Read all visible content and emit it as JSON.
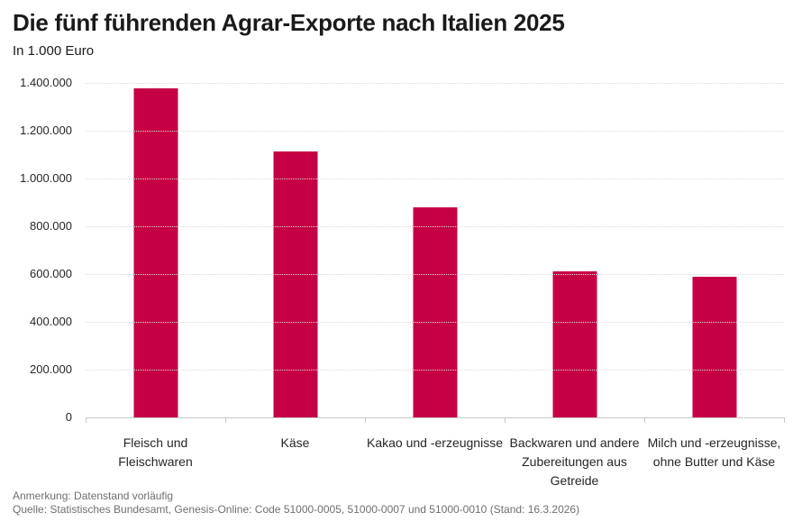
{
  "chart_data": {
    "type": "bar",
    "title": "Die fünf führenden Agrar-Exporte nach Italien 2025",
    "subtitle": "In 1.000 Euro",
    "categories": [
      "Fleisch und Fleischwaren",
      "Käse",
      "Kakao und -erzeugnisse",
      "Backwaren und andere Zubereitungen aus Getreide",
      "Milch und -erzeugnisse, ohne Butter und Käse"
    ],
    "categories_wrapped": [
      [
        "Fleisch und",
        "Fleischwaren"
      ],
      [
        "Käse"
      ],
      [
        "Kakao und -erzeugnisse"
      ],
      [
        "Backwaren und andere",
        "Zubereitungen aus",
        "Getreide"
      ],
      [
        "Milch und -erzeugnisse,",
        "ohne Butter und Käse"
      ]
    ],
    "values": [
      1377000,
      1115000,
      880000,
      613000,
      589000
    ],
    "xlabel": "",
    "ylabel": "",
    "ylim": [
      0,
      1400000
    ],
    "ytick_step": 200000,
    "ytick_labels": [
      "0",
      "200.000",
      "400.000",
      "600.000",
      "800.000",
      "1.000.000",
      "1.200.000",
      "1.400.000"
    ],
    "grid": "horizontal-dotted",
    "legend": "none",
    "bar_color": "#c50045"
  },
  "colors": {
    "bar": "#c50045",
    "axis_line": "#c8c8c8",
    "gridline": "#dcdcdc",
    "title_text": "#1a1a1a",
    "tick_text": "#262626",
    "footer_text": "#6f6f6f"
  },
  "footer": {
    "note": "Anmerkung: Datenstand vorläufig",
    "source": "Quelle: Statistisches Bundesamt, Genesis-Online: Code 51000-0005, 51000-0007 und 51000-0010 (Stand: 16.3.2026)"
  }
}
